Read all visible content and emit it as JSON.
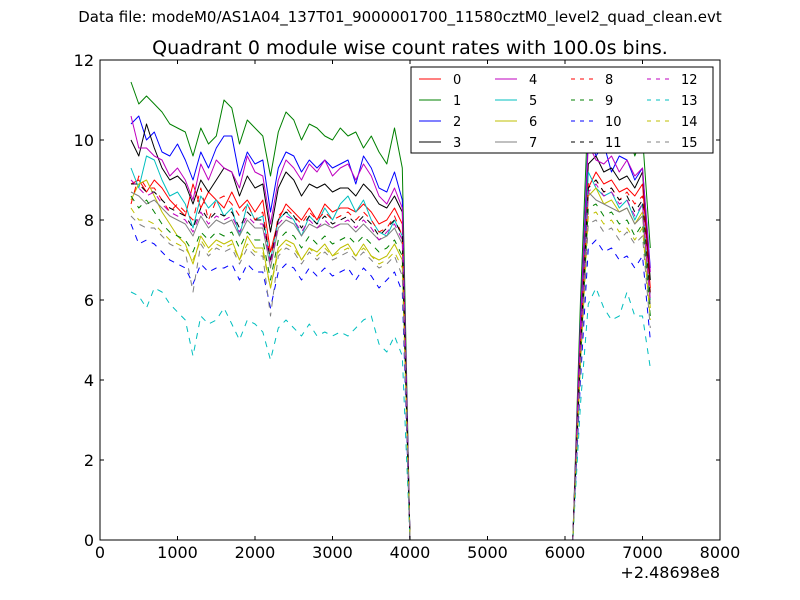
{
  "figure": {
    "suptitle": "Data file: modeM0/AS1A04_137T01_9000001700_11580cztM0_level2_quad_clean.evt",
    "title": "Quadrant 0 module wise count rates with 100.0s bins."
  },
  "chart_data": {
    "type": "line",
    "title": "Quadrant 0 module wise count rates with 100.0s bins.",
    "xlabel": "",
    "ylabel": "",
    "x_offset_label": "+2.48698e8",
    "xlim": [
      0,
      8000
    ],
    "ylim": [
      0,
      12
    ],
    "x_ticks": [
      0,
      1000,
      2000,
      3000,
      4000,
      5000,
      6000,
      7000,
      8000
    ],
    "y_ticks": [
      0,
      2,
      4,
      6,
      8,
      10,
      12
    ],
    "grid": false,
    "legend": {
      "placement": "top-right",
      "columns": 4
    },
    "x": [
      400,
      500,
      600,
      700,
      800,
      900,
      1000,
      1100,
      1200,
      1300,
      1400,
      1500,
      1600,
      1700,
      1800,
      1900,
      2000,
      2100,
      2200,
      2300,
      2400,
      2500,
      2600,
      2700,
      2800,
      2900,
      3000,
      3100,
      3200,
      3300,
      3400,
      3500,
      3600,
      3700,
      3800,
      3900,
      4000,
      4100,
      4200,
      4300,
      4400,
      4500,
      4600,
      4700,
      4800,
      4900,
      5000,
      5100,
      5200,
      5300,
      5400,
      5500,
      5600,
      5700,
      5800,
      5900,
      6000,
      6100,
      6200,
      6300,
      6400,
      6500,
      6600,
      6700,
      6800,
      6900,
      7000,
      7100
    ],
    "series": [
      {
        "name": "0",
        "color": "#ff0000",
        "dash": "solid",
        "values": [
          8.9,
          9.0,
          8.7,
          9.0,
          8.8,
          8.5,
          8.3,
          8.1,
          8.9,
          8.3,
          8.7,
          8.5,
          8.3,
          8.7,
          8.3,
          8.5,
          8.2,
          8.5,
          7.2,
          8.0,
          8.4,
          8.2,
          8.0,
          8.3,
          8.0,
          8.4,
          8.2,
          8.3,
          8.3,
          8.2,
          8.4,
          8.2,
          7.9,
          8.0,
          8.3,
          7.9,
          0.0,
          0.0,
          0.0,
          0.0,
          0.0,
          0.0,
          0.0,
          0.0,
          0.0,
          0.0,
          0.0,
          0.0,
          0.0,
          0.0,
          0.0,
          0.0,
          0.0,
          0.0,
          0.0,
          0.0,
          0.0,
          0.0,
          5.0,
          8.8,
          9.2,
          8.9,
          9.0,
          8.7,
          8.8,
          8.6,
          8.9,
          6.3
        ]
      },
      {
        "name": "1",
        "color": "#008000",
        "dash": "solid",
        "values": [
          11.45,
          10.9,
          11.1,
          10.9,
          10.7,
          10.4,
          10.3,
          10.2,
          9.6,
          10.3,
          9.9,
          10.1,
          11.0,
          10.8,
          9.9,
          10.5,
          10.3,
          10.1,
          9.1,
          10.2,
          10.7,
          10.5,
          10.0,
          10.4,
          10.3,
          10.1,
          10.0,
          10.3,
          10.1,
          10.2,
          9.8,
          10.1,
          9.7,
          9.4,
          10.3,
          9.3,
          0.0,
          0.0,
          0.0,
          0.0,
          0.0,
          0.0,
          0.0,
          0.0,
          0.0,
          0.0,
          0.0,
          0.0,
          0.0,
          0.0,
          0.0,
          0.0,
          0.0,
          0.0,
          0.0,
          0.0,
          0.0,
          0.0,
          6.0,
          10.9,
          11.0,
          10.4,
          10.2,
          10.1,
          10.3,
          9.6,
          10.1,
          7.3
        ]
      },
      {
        "name": "2",
        "color": "#0000ff",
        "dash": "solid",
        "values": [
          10.4,
          10.6,
          10.0,
          10.2,
          9.7,
          9.6,
          9.9,
          9.5,
          9.0,
          9.7,
          9.3,
          9.8,
          10.1,
          10.1,
          9.1,
          9.7,
          9.4,
          9.5,
          8.2,
          9.3,
          9.7,
          9.6,
          9.2,
          9.5,
          9.3,
          9.5,
          9.3,
          9.4,
          9.5,
          8.9,
          9.6,
          9.3,
          8.8,
          8.7,
          9.2,
          8.5,
          0.0,
          0.0,
          0.0,
          0.0,
          0.0,
          0.0,
          0.0,
          0.0,
          0.0,
          0.0,
          0.0,
          0.0,
          0.0,
          0.0,
          0.0,
          0.0,
          0.0,
          0.0,
          0.0,
          0.0,
          0.0,
          0.0,
          5.5,
          10.1,
          9.6,
          9.9,
          9.2,
          9.6,
          9.5,
          9.0,
          9.3,
          6.8
        ]
      },
      {
        "name": "3",
        "color": "#000000",
        "dash": "solid",
        "values": [
          10.0,
          9.6,
          10.4,
          9.8,
          9.3,
          9.0,
          9.1,
          8.9,
          8.4,
          9.0,
          8.7,
          9.0,
          9.3,
          9.2,
          8.6,
          9.1,
          8.8,
          8.9,
          7.7,
          8.8,
          9.2,
          9.0,
          8.6,
          8.9,
          8.8,
          8.9,
          8.7,
          8.8,
          8.8,
          8.6,
          8.9,
          8.7,
          8.4,
          8.3,
          8.6,
          8.2,
          0.0,
          0.0,
          0.0,
          0.0,
          0.0,
          0.0,
          0.0,
          0.0,
          0.0,
          0.0,
          0.0,
          0.0,
          0.0,
          0.0,
          0.0,
          0.0,
          0.0,
          0.0,
          0.0,
          0.0,
          0.0,
          0.0,
          5.3,
          9.4,
          9.6,
          9.2,
          9.3,
          9.0,
          9.1,
          8.8,
          9.2,
          6.5
        ]
      },
      {
        "name": "4",
        "color": "#bf00bf",
        "dash": "solid",
        "values": [
          10.6,
          9.8,
          9.8,
          9.6,
          9.5,
          9.1,
          9.3,
          9.0,
          8.5,
          9.4,
          9.0,
          9.5,
          9.3,
          9.2,
          8.8,
          9.6,
          9.2,
          9.1,
          7.9,
          9.0,
          9.5,
          9.3,
          9.0,
          9.4,
          9.2,
          9.5,
          9.1,
          9.3,
          9.4,
          9.0,
          9.4,
          9.1,
          8.6,
          8.4,
          8.8,
          8.3,
          0.0,
          0.0,
          0.0,
          0.0,
          0.0,
          0.0,
          0.0,
          0.0,
          0.0,
          0.0,
          0.0,
          0.0,
          0.0,
          0.0,
          0.0,
          0.0,
          0.0,
          0.0,
          0.0,
          0.0,
          0.0,
          0.0,
          5.4,
          9.9,
          9.5,
          9.4,
          9.6,
          9.2,
          9.5,
          9.1,
          9.3,
          6.7
        ]
      },
      {
        "name": "5",
        "color": "#00bfbf",
        "dash": "solid",
        "values": [
          9.3,
          8.8,
          9.6,
          9.5,
          9.0,
          8.6,
          8.7,
          8.4,
          7.8,
          8.6,
          8.3,
          8.5,
          8.1,
          8.3,
          7.6,
          8.4,
          8.0,
          8.1,
          7.0,
          8.0,
          8.2,
          8.0,
          7.6,
          8.1,
          7.9,
          8.3,
          8.0,
          8.4,
          8.6,
          8.2,
          8.5,
          8.0,
          7.7,
          7.6,
          8.0,
          7.6,
          0.0,
          0.0,
          0.0,
          0.0,
          0.0,
          0.0,
          0.0,
          0.0,
          0.0,
          0.0,
          0.0,
          0.0,
          0.0,
          0.0,
          0.0,
          0.0,
          0.0,
          0.0,
          0.0,
          0.0,
          0.0,
          0.0,
          4.8,
          9.2,
          8.8,
          8.6,
          8.7,
          8.3,
          8.5,
          8.0,
          8.4,
          6.0
        ]
      },
      {
        "name": "6",
        "color": "#bfbf00",
        "dash": "solid",
        "values": [
          8.5,
          8.9,
          9.0,
          8.6,
          8.2,
          7.9,
          7.6,
          7.4,
          6.9,
          7.6,
          7.3,
          7.5,
          7.4,
          7.5,
          7.0,
          7.6,
          7.3,
          7.3,
          6.3,
          7.3,
          7.5,
          7.4,
          7.0,
          7.3,
          7.2,
          7.4,
          7.1,
          7.3,
          7.4,
          7.1,
          7.4,
          7.1,
          7.0,
          7.1,
          7.4,
          7.0,
          0.0,
          0.0,
          0.0,
          0.0,
          0.0,
          0.0,
          0.0,
          0.0,
          0.0,
          0.0,
          0.0,
          0.0,
          0.0,
          0.0,
          0.0,
          0.0,
          0.0,
          0.0,
          0.0,
          0.0,
          0.0,
          0.0,
          4.6,
          8.6,
          8.8,
          8.4,
          8.5,
          8.2,
          8.3,
          7.9,
          8.2,
          5.8
        ]
      },
      {
        "name": "7",
        "color": "#808080",
        "dash": "solid",
        "values": [
          8.7,
          8.6,
          8.4,
          8.5,
          8.3,
          8.1,
          8.0,
          7.9,
          7.6,
          8.1,
          7.8,
          8.0,
          7.9,
          8.0,
          7.6,
          8.0,
          7.8,
          7.8,
          6.8,
          7.8,
          8.0,
          7.9,
          7.6,
          7.9,
          7.8,
          7.9,
          7.8,
          7.9,
          7.9,
          7.7,
          7.9,
          7.7,
          7.5,
          7.6,
          7.8,
          7.4,
          0.0,
          0.0,
          0.0,
          0.0,
          0.0,
          0.0,
          0.0,
          0.0,
          0.0,
          0.0,
          0.0,
          0.0,
          0.0,
          0.0,
          0.0,
          0.0,
          0.0,
          0.0,
          0.0,
          0.0,
          0.0,
          0.0,
          4.7,
          8.7,
          8.5,
          8.4,
          8.3,
          8.2,
          8.3,
          7.9,
          8.1,
          5.9
        ]
      },
      {
        "name": "8",
        "color": "#ff0000",
        "dash": "dashed",
        "values": [
          8.4,
          9.1,
          8.8,
          8.8,
          8.5,
          8.2,
          8.4,
          8.2,
          8.0,
          8.8,
          8.0,
          8.5,
          8.6,
          8.4,
          8.1,
          8.4,
          8.0,
          8.2,
          7.0,
          8.1,
          8.3,
          8.1,
          7.9,
          8.2,
          8.0,
          8.2,
          8.0,
          8.1,
          8.2,
          8.0,
          8.2,
          8.0,
          7.7,
          7.8,
          8.1,
          7.6,
          0.0,
          0.0,
          0.0,
          0.0,
          0.0,
          0.0,
          0.0,
          0.0,
          0.0,
          0.0,
          0.0,
          0.0,
          0.0,
          0.0,
          0.0,
          0.0,
          0.0,
          0.0,
          0.0,
          0.0,
          0.0,
          0.0,
          4.9,
          8.9,
          9.0,
          8.7,
          8.8,
          8.5,
          8.7,
          8.4,
          8.6,
          6.2
        ]
      },
      {
        "name": "9",
        "color": "#008000",
        "dash": "dashed",
        "values": [
          8.6,
          8.3,
          8.5,
          8.2,
          7.9,
          7.7,
          7.6,
          7.5,
          7.2,
          7.7,
          7.5,
          7.7,
          7.6,
          7.7,
          7.3,
          7.7,
          7.5,
          7.5,
          6.5,
          7.5,
          7.7,
          7.6,
          7.3,
          7.6,
          7.4,
          7.6,
          7.4,
          7.5,
          7.6,
          7.4,
          7.6,
          7.4,
          7.2,
          7.3,
          7.5,
          7.1,
          0.0,
          0.0,
          0.0,
          0.0,
          0.0,
          0.0,
          0.0,
          0.0,
          0.0,
          0.0,
          0.0,
          0.0,
          0.0,
          0.0,
          0.0,
          0.0,
          0.0,
          0.0,
          0.0,
          0.0,
          0.0,
          0.0,
          4.5,
          8.3,
          8.4,
          8.1,
          8.2,
          7.9,
          8.0,
          7.6,
          7.9,
          5.6
        ]
      },
      {
        "name": "10",
        "color": "#0000ff",
        "dash": "dashed",
        "values": [
          7.9,
          7.4,
          7.5,
          7.4,
          7.2,
          7.0,
          6.9,
          6.8,
          6.4,
          6.9,
          6.7,
          6.8,
          6.8,
          6.9,
          6.5,
          6.9,
          6.7,
          6.7,
          5.8,
          6.7,
          6.9,
          6.8,
          6.5,
          6.8,
          6.6,
          6.8,
          6.6,
          6.7,
          6.8,
          6.5,
          6.8,
          6.6,
          6.3,
          6.5,
          6.7,
          6.2,
          0.0,
          0.0,
          0.0,
          0.0,
          0.0,
          0.0,
          0.0,
          0.0,
          0.0,
          0.0,
          0.0,
          0.0,
          0.0,
          0.0,
          0.0,
          0.0,
          0.0,
          0.0,
          0.0,
          0.0,
          0.0,
          0.0,
          4.0,
          7.3,
          7.5,
          7.2,
          7.3,
          7.0,
          7.1,
          6.8,
          7.1,
          5.0
        ]
      },
      {
        "name": "11",
        "color": "#000000",
        "dash": "dashed",
        "values": [
          8.9,
          8.9,
          8.7,
          8.7,
          8.5,
          8.3,
          8.2,
          8.1,
          7.8,
          8.3,
          8.0,
          8.2,
          8.1,
          8.2,
          7.8,
          8.2,
          8.0,
          8.0,
          7.0,
          8.0,
          8.2,
          8.1,
          7.8,
          8.1,
          7.9,
          8.1,
          7.9,
          8.0,
          8.1,
          7.9,
          8.1,
          7.9,
          7.6,
          7.8,
          8.0,
          7.6,
          0.0,
          0.0,
          0.0,
          0.0,
          0.0,
          0.0,
          0.0,
          0.0,
          0.0,
          0.0,
          0.0,
          0.0,
          0.0,
          0.0,
          0.0,
          0.0,
          0.0,
          0.0,
          0.0,
          0.0,
          0.0,
          0.0,
          4.8,
          8.8,
          9.0,
          8.7,
          8.8,
          8.5,
          8.6,
          8.2,
          8.5,
          6.1
        ]
      },
      {
        "name": "12",
        "color": "#bf00bf",
        "dash": "dashed",
        "values": [
          9.0,
          8.8,
          8.6,
          8.7,
          8.4,
          8.2,
          8.1,
          8.0,
          7.7,
          8.2,
          7.9,
          8.1,
          8.0,
          8.1,
          7.7,
          8.1,
          7.9,
          7.9,
          6.9,
          7.9,
          8.1,
          8.0,
          7.7,
          8.0,
          7.8,
          8.0,
          7.8,
          7.9,
          8.0,
          7.8,
          8.0,
          7.8,
          7.5,
          7.7,
          7.9,
          7.5,
          0.0,
          0.0,
          0.0,
          0.0,
          0.0,
          0.0,
          0.0,
          0.0,
          0.0,
          0.0,
          0.0,
          0.0,
          0.0,
          0.0,
          0.0,
          0.0,
          0.0,
          0.0,
          0.0,
          0.0,
          0.0,
          0.0,
          4.8,
          8.7,
          8.9,
          8.6,
          8.7,
          8.4,
          8.5,
          8.1,
          8.4,
          6.0
        ]
      },
      {
        "name": "13",
        "color": "#00bfbf",
        "dash": "dashed",
        "values": [
          6.2,
          6.1,
          5.8,
          6.3,
          6.2,
          5.9,
          5.7,
          5.5,
          4.6,
          5.6,
          5.4,
          5.5,
          5.8,
          5.4,
          5.0,
          5.5,
          5.4,
          5.2,
          4.5,
          5.3,
          5.5,
          5.3,
          5.1,
          5.4,
          5.1,
          5.2,
          5.1,
          5.2,
          5.1,
          5.3,
          5.5,
          5.6,
          4.9,
          4.7,
          5.1,
          4.6,
          0.0,
          0.0,
          0.0,
          0.0,
          0.0,
          0.0,
          0.0,
          0.0,
          0.0,
          0.0,
          0.0,
          0.0,
          0.0,
          0.0,
          0.0,
          0.0,
          0.0,
          0.0,
          0.0,
          0.0,
          0.0,
          0.0,
          3.4,
          5.9,
          6.3,
          5.8,
          5.5,
          5.6,
          6.2,
          5.6,
          5.6,
          4.3
        ]
      },
      {
        "name": "14",
        "color": "#bfbf00",
        "dash": "dashed",
        "values": [
          8.3,
          8.0,
          8.0,
          7.9,
          7.7,
          7.5,
          7.4,
          7.3,
          7.0,
          7.5,
          7.2,
          7.4,
          7.3,
          7.4,
          7.0,
          7.4,
          7.2,
          7.2,
          6.3,
          7.2,
          7.4,
          7.3,
          7.0,
          7.3,
          7.1,
          7.3,
          7.1,
          7.2,
          7.3,
          7.1,
          7.3,
          7.1,
          6.9,
          7.0,
          7.2,
          6.8,
          0.0,
          0.0,
          0.0,
          0.0,
          0.0,
          0.0,
          0.0,
          0.0,
          0.0,
          0.0,
          0.0,
          0.0,
          0.0,
          0.0,
          0.0,
          0.0,
          0.0,
          0.0,
          0.0,
          0.0,
          0.0,
          0.0,
          4.4,
          8.1,
          8.2,
          7.9,
          8.0,
          7.7,
          7.8,
          7.5,
          7.8,
          5.5
        ]
      },
      {
        "name": "15",
        "color": "#808080",
        "dash": "dashed",
        "values": [
          8.1,
          7.9,
          7.8,
          7.8,
          7.6,
          7.4,
          7.3,
          7.2,
          6.2,
          7.4,
          7.1,
          7.3,
          7.2,
          7.3,
          6.9,
          7.3,
          7.1,
          7.1,
          5.6,
          7.1,
          7.3,
          7.2,
          6.9,
          7.2,
          7.0,
          7.2,
          7.0,
          7.1,
          7.2,
          7.0,
          7.2,
          7.0,
          6.8,
          6.9,
          7.1,
          6.6,
          0.0,
          0.0,
          0.0,
          0.0,
          0.0,
          0.0,
          0.0,
          0.0,
          0.0,
          0.0,
          0.0,
          0.0,
          0.0,
          0.0,
          0.0,
          0.0,
          0.0,
          0.0,
          0.0,
          0.0,
          0.0,
          0.0,
          4.3,
          7.9,
          8.0,
          7.7,
          7.8,
          7.5,
          7.7,
          7.4,
          7.6,
          5.3
        ]
      }
    ]
  }
}
